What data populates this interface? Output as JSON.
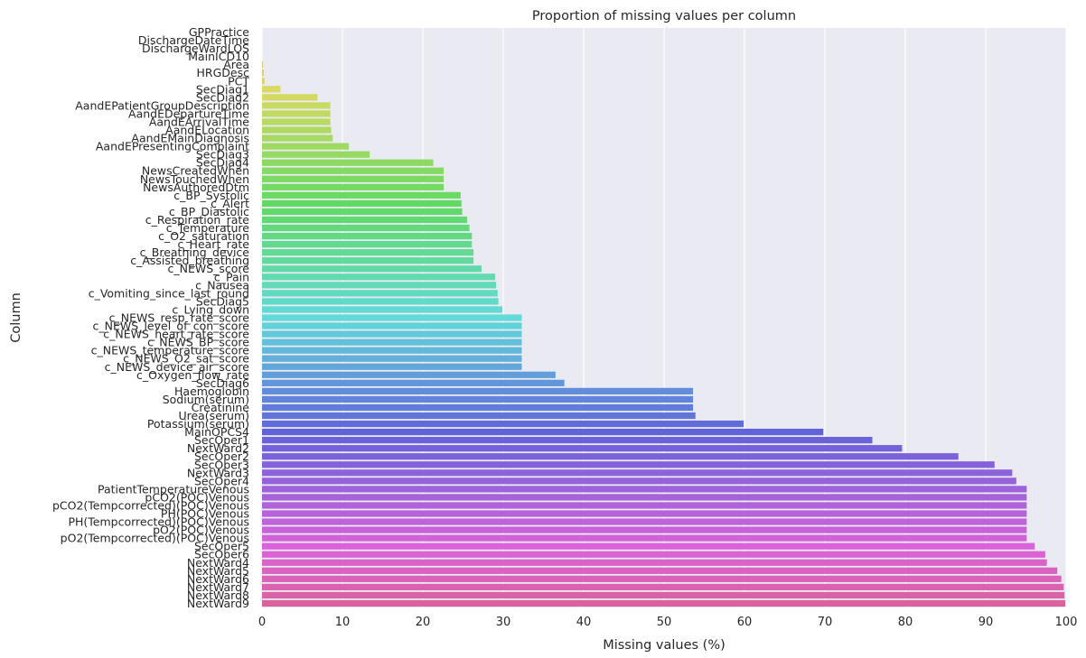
{
  "chart_data": {
    "type": "bar",
    "orientation": "horizontal",
    "title": "Proportion of missing values per column",
    "xlabel": "Missing values (%)",
    "ylabel": "Column",
    "xlim": [
      0,
      100
    ],
    "xticks": [
      0,
      10,
      20,
      30,
      40,
      50,
      60,
      70,
      80,
      90,
      100
    ],
    "grid": true,
    "legend": "none",
    "plot_background": "#eaeaf2",
    "grid_color": "#ffffff",
    "categories": [
      "GPPractice",
      "DischargeDateTime",
      "DischargeWardLOS",
      "MainICD10",
      "Area",
      "HRGDesc",
      "PCT",
      "SecDiag1",
      "SecDiag2",
      "AandEPatientGroupDescription",
      "AandEDepartureTime",
      "AandEArrivalTime",
      "AandELocation",
      "AandEMainDiagnosis",
      "AandEPresentingComplaint",
      "SecDiag3",
      "SecDiag4",
      "NewsCreatedWhen",
      "NewsTouchedWhen",
      "NewsAuthoredDtm",
      "c_BP_Systolic",
      "c_Alert",
      "c_BP_Diastolic",
      "c_Respiration_rate",
      "c_Temperature",
      "c_O2_saturation",
      "c_Heart_rate",
      "c_Breathing_device",
      "c_Assisted_breathing",
      "c_NEWS_score",
      "c_Pain",
      "c_Nausea",
      "c_Vomiting_since_last_round",
      "SecDiag5",
      "c_Lying_down",
      "c_NEWS_resp_rate_score",
      "c_NEWS_level_of_con_score",
      "c_NEWS_heart_rate_score",
      "c_NEWS_BP_score",
      "c_NEWS_temperature_score",
      "c_NEWS_O2_sat_score",
      "c_NEWS_device_air_score",
      "c_Oxygen_flow_rate",
      "SecDiag6",
      "Haemoglobin",
      "Sodium(serum)",
      "Creatinine",
      "Urea(serum)",
      "Potassium(serum)",
      "MainOPCS4",
      "SecOper1",
      "NextWard2",
      "SecOper2",
      "SecOper3",
      "NextWard3",
      "SecOper4",
      "PatientTemperatureVenous",
      "pCO2(POC)Venous",
      "pCO2(Tempcorrected)(POC)Venous",
      "PH(POC)Venous",
      "PH(Tempcorrected)(POC)Venous",
      "pO2(POC)Venous",
      "pO2(Tempcorrected)(POC)Venous",
      "SecOper5",
      "SecOper6",
      "NextWard4",
      "NextWard5",
      "NextWard6",
      "NextWard7",
      "NextWard8",
      "NextWard9"
    ],
    "values": [
      0,
      0,
      0,
      0,
      0.1,
      0.2,
      0.3,
      2.3,
      6.9,
      8.5,
      8.5,
      8.5,
      8.6,
      8.8,
      10.8,
      13.4,
      21.3,
      22.6,
      22.6,
      22.6,
      24.7,
      24.8,
      24.9,
      25.5,
      25.8,
      26.1,
      26.1,
      26.3,
      26.3,
      27.3,
      29.0,
      29.1,
      29.3,
      29.4,
      29.9,
      32.3,
      32.3,
      32.3,
      32.3,
      32.3,
      32.3,
      32.3,
      36.5,
      37.6,
      53.6,
      53.6,
      53.6,
      53.9,
      59.9,
      69.8,
      75.9,
      79.6,
      86.6,
      91.1,
      93.3,
      93.8,
      95.1,
      95.1,
      95.1,
      95.1,
      95.1,
      95.1,
      95.1,
      96.1,
      97.4,
      97.6,
      98.9,
      99.4,
      99.7,
      99.8,
      99.9
    ]
  }
}
